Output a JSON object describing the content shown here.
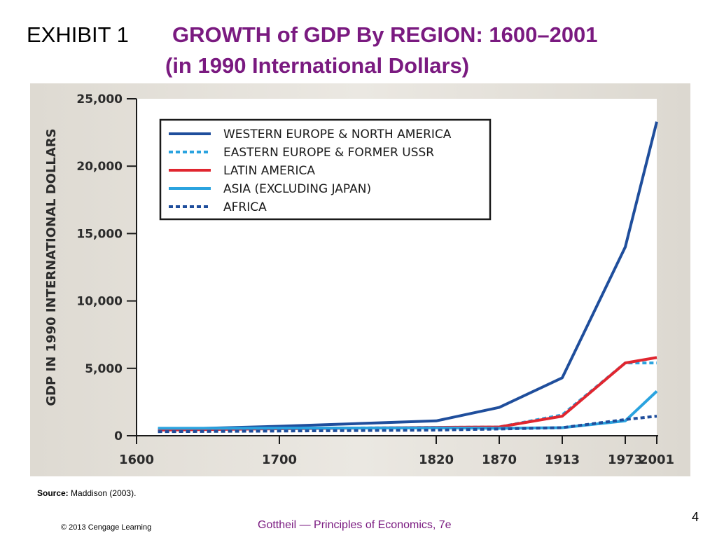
{
  "slide": {
    "exhibit_label": "EXHIBIT 1",
    "title_line1": "GROWTH of GDP By REGION: 1600–2001",
    "title_line2": "(in 1990 International Dollars)",
    "source_label": "Source:",
    "source_text": "Maddison (2003).",
    "page_number": "4",
    "copyright": "© 2013 Cengage Learning",
    "footer_book": "Gottheil — Principles of Economics, 7e",
    "title_color": "#7a1a80"
  },
  "chart_data": {
    "type": "line",
    "title": "",
    "xlabel": "",
    "ylabel": "GDP IN 1990 INTERNATIONAL DOLLARS",
    "x_ticks": [
      1600,
      1700,
      1820,
      1870,
      1913,
      1973,
      2001
    ],
    "y_ticks": [
      0,
      5000,
      10000,
      15000,
      20000,
      25000
    ],
    "y_tick_labels": [
      "0",
      "5,000",
      "10,000",
      "15,000",
      "20,000",
      "25,000"
    ],
    "xlim": [
      1600,
      2001
    ],
    "ylim": [
      0,
      25000
    ],
    "legend_position": "top-left",
    "series": [
      {
        "name": "WESTERN EUROPE & NORTH AMERICA",
        "color": "#1f4e9c",
        "style": "solid",
        "x": [
          1615,
          1700,
          1820,
          1870,
          1913,
          1973,
          2001
        ],
        "values": [
          450,
          700,
          1100,
          2100,
          4300,
          14000,
          23300
        ]
      },
      {
        "name": "EASTERN EUROPE & FORMER USSR",
        "color": "#2aa3df",
        "style": "dotted",
        "x": [
          1615,
          1700,
          1820,
          1870,
          1913,
          1973,
          2001
        ],
        "values": [
          480,
          530,
          620,
          650,
          1550,
          5400,
          5400
        ]
      },
      {
        "name": "LATIN AMERICA",
        "color": "#e0262f",
        "style": "solid",
        "x": [
          1615,
          1700,
          1820,
          1870,
          1913,
          1973,
          2001
        ],
        "values": [
          420,
          520,
          620,
          650,
          1450,
          5400,
          5800
        ]
      },
      {
        "name": "ASIA (EXCLUDING JAPAN)",
        "color": "#2aa3df",
        "style": "solid",
        "x": [
          1615,
          1700,
          1820,
          1870,
          1913,
          1973,
          2001
        ],
        "values": [
          550,
          560,
          580,
          550,
          600,
          1100,
          3300
        ]
      },
      {
        "name": "AFRICA",
        "color": "#1f4e9c",
        "style": "dotted",
        "x": [
          1615,
          1700,
          1820,
          1870,
          1913,
          1973,
          2001
        ],
        "values": [
          300,
          350,
          420,
          500,
          600,
          1200,
          1450
        ]
      }
    ]
  }
}
